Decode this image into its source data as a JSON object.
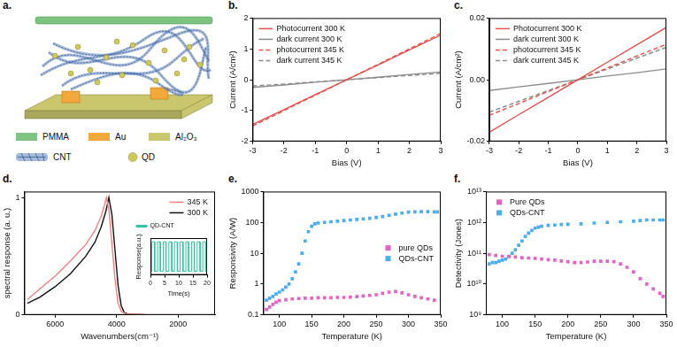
{
  "schematic": {
    "label": "a.",
    "legend": [
      {
        "text": "PMMA",
        "color": "#7cc47f"
      },
      {
        "text": "Au",
        "color": "#f3a83b"
      },
      {
        "text": "Al₂O₃",
        "color": "#c9c66e"
      },
      {
        "text": "CNT",
        "color": "#5d82bd"
      },
      {
        "text": "QD",
        "color": "#cfc85a"
      }
    ]
  },
  "chart_data": [
    {
      "label": "b.",
      "type": "line",
      "x_label": "Bias (V)",
      "y_label": "Current (A/cm²)",
      "x": [
        -3,
        -2,
        -1,
        0,
        1,
        2,
        3
      ],
      "series": [
        {
          "name": "Photocurrent 300 K",
          "color": "#e8504a",
          "line_style": "solid",
          "values": [
            -1.45,
            -0.97,
            -0.48,
            0,
            0.48,
            0.97,
            1.45
          ]
        },
        {
          "name": "dark current 300 K",
          "color": "#8c8c8c",
          "line_style": "solid",
          "values": [
            -0.25,
            -0.17,
            -0.08,
            0,
            0.08,
            0.17,
            0.25
          ]
        },
        {
          "name": "photocurrent 345 K",
          "color": "#e8504a",
          "line_style": "dashed",
          "values": [
            -1.5,
            -1.0,
            -0.5,
            0,
            0.5,
            1.0,
            1.5
          ]
        },
        {
          "name": "dark current 345 K",
          "color": "#8c8c8c",
          "line_style": "dashed",
          "values": [
            -0.2,
            -0.14,
            -0.07,
            0,
            0.07,
            0.14,
            0.21
          ]
        }
      ],
      "xlim": [
        -3,
        3
      ],
      "xticks": [
        -3,
        -2,
        -1,
        0,
        1,
        2,
        3
      ],
      "ylim": [
        -2,
        2
      ],
      "yticks": [
        -2,
        -1,
        0,
        1,
        2
      ],
      "grid": false,
      "legend": "upper left"
    },
    {
      "label": "c.",
      "type": "line",
      "x_label": "Bias (V)",
      "y_label": "Current (A/cm²)",
      "x": [
        -3,
        -2,
        -1,
        0,
        1,
        2,
        3
      ],
      "series": [
        {
          "name": "Photocurrent 300 K",
          "color": "#e8504a",
          "line_style": "solid",
          "values": [
            -0.017,
            -0.0113,
            -0.0057,
            0,
            0.0057,
            0.0113,
            0.017
          ]
        },
        {
          "name": "dark current 300 K",
          "color": "#8c8c8c",
          "line_style": "solid",
          "values": [
            -0.0035,
            -0.0023,
            -0.0012,
            0,
            0.0012,
            0.0023,
            0.0035
          ]
        },
        {
          "name": "photocurrent 345 K",
          "color": "#e8504a",
          "line_style": "dashed",
          "values": [
            -0.0115,
            -0.0077,
            -0.0038,
            0,
            0.0038,
            0.0077,
            0.0115
          ]
        },
        {
          "name": "dark current 345 K",
          "color": "#8c8c8c",
          "line_style": "dashed",
          "values": [
            -0.0105,
            -0.007,
            -0.0035,
            0,
            0.0035,
            0.007,
            0.0105
          ]
        }
      ],
      "xlim": [
        -3,
        3
      ],
      "xticks": [
        -3,
        -2,
        -1,
        0,
        1,
        2,
        3
      ],
      "ylim": [
        -0.02,
        0.02
      ],
      "yticks": [
        -0.02,
        {
          "value": 0,
          "label": "0.00"
        },
        0.02
      ],
      "grid": false,
      "legend": "upper left"
    },
    {
      "label": "d.",
      "type": "line",
      "x_label": "Wavenumbers(cm⁻¹)",
      "y_label": "spectral response (a. u.)",
      "series": [
        {
          "name": "345 K",
          "color": "#f08080",
          "line_style": "solid",
          "x": [
            6900,
            6500,
            6000,
            5500,
            5000,
            4700,
            4500,
            4400,
            4330,
            4250,
            4150,
            4050,
            3950,
            3850,
            3700,
            3000,
            2000,
            1000
          ],
          "values": [
            0.13,
            0.22,
            0.33,
            0.46,
            0.6,
            0.72,
            0.84,
            0.93,
            1,
            0.9,
            0.6,
            0.3,
            0.1,
            0.03,
            0.01,
            0,
            0,
            0
          ]
        },
        {
          "name": "300 K",
          "color": "#111111",
          "line_style": "solid",
          "x": [
            6900,
            6500,
            6000,
            5500,
            5000,
            4700,
            4500,
            4350,
            4250,
            4150,
            4050,
            3950,
            3850,
            3750,
            3600,
            3000,
            2000,
            1000
          ],
          "values": [
            0.1,
            0.15,
            0.24,
            0.35,
            0.5,
            0.62,
            0.75,
            0.88,
            1,
            0.85,
            0.55,
            0.25,
            0.08,
            0.02,
            0.005,
            0,
            0,
            0
          ]
        }
      ],
      "xlim": [
        7000,
        800
      ],
      "xticks": [
        6000,
        4000,
        2000
      ],
      "ylim": [
        0,
        1.05
      ],
      "yticks": [
        0,
        1
      ],
      "grid": false,
      "legend": "upper right",
      "inset": {
        "type": "line",
        "x_label": "Time(s)",
        "y_label": "Response(a.u.)",
        "series": [
          {
            "name": "QD-CNT",
            "color": "#2ec4a6",
            "line_style": "solid",
            "x": [
              0,
              0.5,
              0.5,
              1.5,
              1.5,
              2.5,
              2.5,
              3.5,
              3.5,
              4.5,
              4.5,
              5.5,
              5.5,
              6.5,
              6.5,
              7.5,
              7.5,
              8.5,
              8.5,
              9.5,
              9.5,
              10.5,
              10.5,
              11.5,
              11.5,
              12.5,
              12.5,
              13.5,
              13.5,
              14.5,
              14.5,
              15.5,
              15.5,
              16.5,
              16.5,
              17.5,
              17.5,
              18.5,
              18.5,
              19.5,
              19.5,
              20
            ],
            "values": [
              0.1,
              0.1,
              0.9,
              0.9,
              0.1,
              0.1,
              0.9,
              0.9,
              0.1,
              0.1,
              0.9,
              0.9,
              0.1,
              0.1,
              0.9,
              0.9,
              0.1,
              0.1,
              0.9,
              0.9,
              0.1,
              0.1,
              0.9,
              0.9,
              0.1,
              0.1,
              0.9,
              0.9,
              0.1,
              0.1,
              0.9,
              0.9,
              0.1,
              0.1,
              0.9,
              0.9,
              0.1,
              0.1,
              0.9,
              0.9,
              0.1,
              0.1
            ]
          }
        ],
        "xlim": [
          0,
          20
        ],
        "xticks": [
          0,
          5,
          10,
          15,
          20
        ],
        "ylim": [
          0,
          1
        ],
        "tick_labels": "x",
        "grid": false,
        "legend": "top"
      }
    },
    {
      "label": "e.",
      "type": "scatter",
      "x_label": "Temperature (K)",
      "y_label": "Responsivity (A/W)",
      "log": "y",
      "series": [
        {
          "name": "pure QDs",
          "color": "#e463c6",
          "marker": "square",
          "x": [
            80,
            85,
            90,
            95,
            100,
            110,
            120,
            130,
            140,
            150,
            160,
            170,
            180,
            190,
            200,
            210,
            220,
            230,
            240,
            250,
            260,
            270,
            280,
            290,
            300,
            310,
            320,
            330,
            340
          ],
          "values": [
            0.15,
            0.18,
            0.22,
            0.26,
            0.29,
            0.31,
            0.33,
            0.34,
            0.35,
            0.35,
            0.36,
            0.36,
            0.36,
            0.37,
            0.37,
            0.38,
            0.39,
            0.41,
            0.43,
            0.45,
            0.5,
            0.55,
            0.57,
            0.52,
            0.45,
            0.4,
            0.36,
            0.33,
            0.3
          ]
        },
        {
          "name": "QDs-CNT",
          "color": "#47aef2",
          "marker": "square",
          "x": [
            80,
            85,
            90,
            95,
            100,
            105,
            110,
            115,
            120,
            125,
            130,
            135,
            140,
            145,
            150,
            155,
            160,
            170,
            180,
            190,
            200,
            210,
            220,
            230,
            240,
            250,
            260,
            270,
            280,
            290,
            300,
            310,
            320,
            330,
            340,
            345
          ],
          "values": [
            0.3,
            0.35,
            0.4,
            0.48,
            0.55,
            0.65,
            0.8,
            1,
            1.5,
            2.5,
            4.5,
            10,
            25,
            50,
            75,
            90,
            95,
            100,
            105,
            110,
            115,
            120,
            125,
            130,
            135,
            145,
            155,
            170,
            185,
            200,
            215,
            220,
            222,
            222,
            220,
            220
          ]
        }
      ],
      "xlim": [
        75,
        350
      ],
      "xticks": [
        100,
        150,
        200,
        250,
        300,
        350
      ],
      "ylim": [
        0.1,
        1000
      ],
      "yticks": [
        0.1,
        1,
        10,
        100,
        1000
      ],
      "grid": false,
      "legend": "center right"
    },
    {
      "label": "f.",
      "type": "scatter",
      "x_label": "Temperature (K)",
      "y_label": "Detectivity (Jones)",
      "log": "y",
      "series": [
        {
          "name": "Pure QDs",
          "color": "#e463c6",
          "marker": "square",
          "x": [
            80,
            90,
            100,
            110,
            120,
            130,
            140,
            150,
            160,
            170,
            180,
            190,
            200,
            210,
            220,
            230,
            240,
            250,
            260,
            270,
            280,
            290,
            300,
            310,
            320,
            330,
            340,
            345
          ],
          "values": [
            90000000000.0,
            85000000000.0,
            80000000000.0,
            78000000000.0,
            75000000000.0,
            72000000000.0,
            70000000000.0,
            68000000000.0,
            65000000000.0,
            62000000000.0,
            60000000000.0,
            56000000000.0,
            53000000000.0,
            50000000000.0,
            50000000000.0,
            52000000000.0,
            55000000000.0,
            55000000000.0,
            55000000000.0,
            53000000000.0,
            45000000000.0,
            35000000000.0,
            25000000000.0,
            15000000000.0,
            10000000000.0,
            7000000000.0,
            5000000000.0,
            4000000000.0
          ]
        },
        {
          "name": "QDs-CNT",
          "color": "#47aef2",
          "marker": "square",
          "x": [
            80,
            85,
            90,
            95,
            100,
            105,
            110,
            115,
            120,
            125,
            130,
            135,
            140,
            145,
            150,
            155,
            160,
            170,
            180,
            190,
            200,
            220,
            240,
            260,
            280,
            300,
            310,
            320,
            330,
            340,
            345
          ],
          "values": [
            45000000000.0,
            50000000000.0,
            50000000000.0,
            55000000000.0,
            60000000000.0,
            65000000000.0,
            80000000000.0,
            100000000000.0,
            130000000000.0,
            180000000000.0,
            250000000000.0,
            350000000000.0,
            450000000000.0,
            550000000000.0,
            650000000000.0,
            700000000000.0,
            750000000000.0,
            800000000000.0,
            820000000000.0,
            850000000000.0,
            870000000000.0,
            900000000000.0,
            950000000000.0,
            1000000000000.0,
            1050000000000.0,
            1100000000000.0,
            1150000000000.0,
            1200000000000.0,
            1200000000000.0,
            1200000000000.0,
            1200000000000.0
          ]
        }
      ],
      "xlim": [
        75,
        350
      ],
      "xticks": [
        100,
        150,
        200,
        250,
        300,
        350
      ],
      "ylim": [
        1000000000.0,
        10000000000000.0
      ],
      "yticks": [
        {
          "value": 1000000000.0,
          "label": "10⁹"
        },
        {
          "value": 10000000000.0,
          "label": "10¹⁰"
        },
        {
          "value": 100000000000.0,
          "label": "10¹¹"
        },
        {
          "value": 1000000000000.0,
          "label": "10¹²"
        },
        {
          "value": 10000000000000.0,
          "label": "10¹³"
        }
      ],
      "grid": false,
      "legend": "upper left"
    }
  ]
}
